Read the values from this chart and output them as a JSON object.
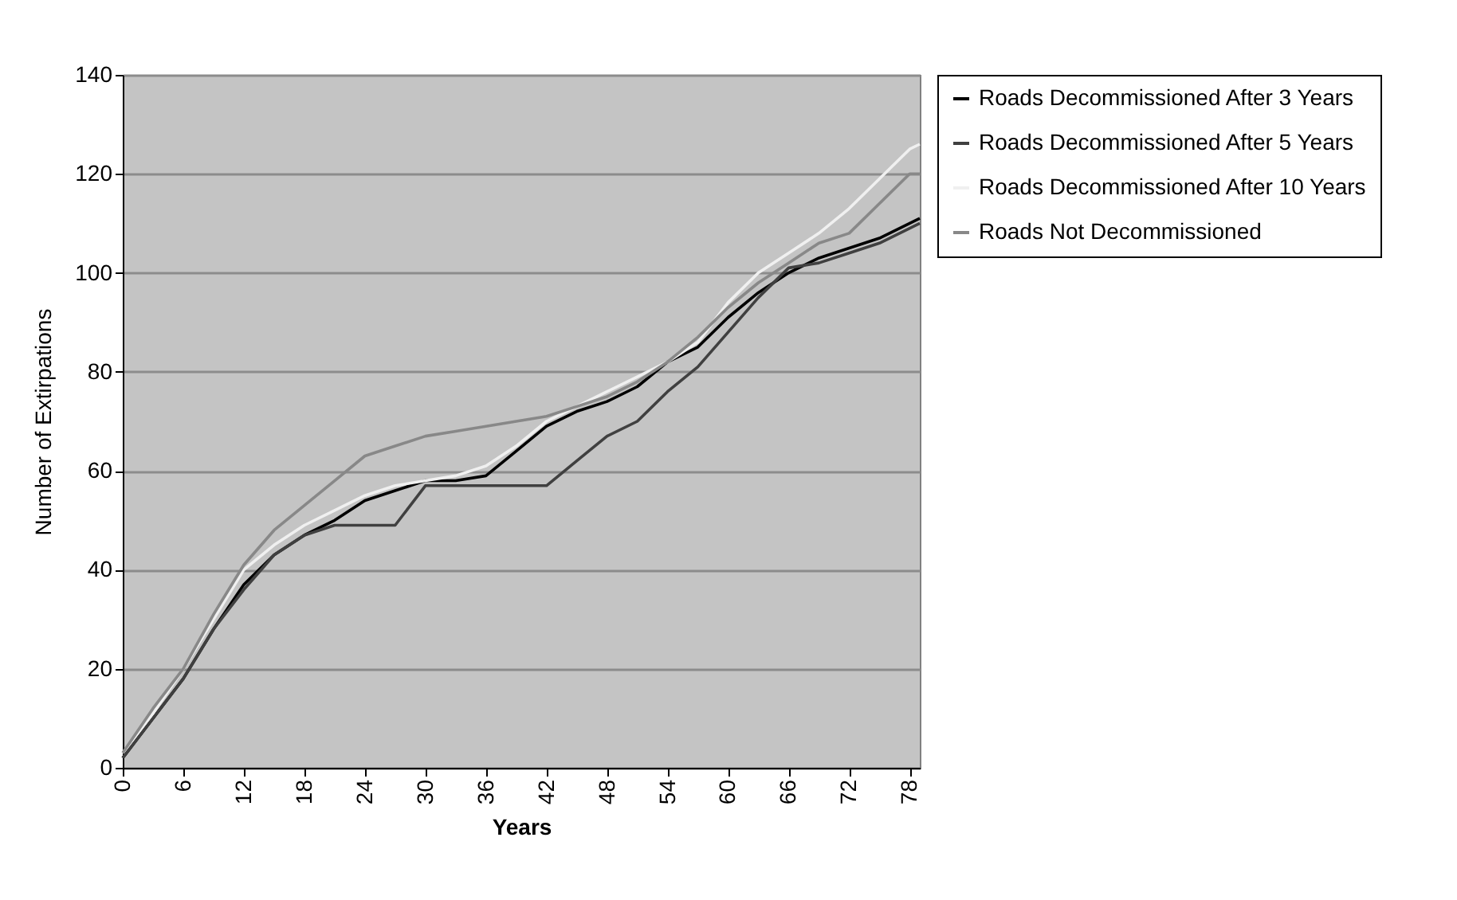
{
  "chart_data": {
    "type": "line",
    "xlabel": "Years",
    "ylabel": "Number of Extirpations",
    "x": [
      0,
      3,
      6,
      9,
      12,
      15,
      18,
      21,
      24,
      27,
      30,
      33,
      36,
      39,
      42,
      45,
      48,
      51,
      54,
      57,
      60,
      63,
      66,
      69,
      72,
      75,
      78,
      79
    ],
    "xlim": [
      0,
      79
    ],
    "xticks": [
      0,
      6,
      12,
      18,
      24,
      30,
      36,
      42,
      48,
      54,
      60,
      66,
      72,
      78
    ],
    "ylim": [
      0,
      140
    ],
    "yticks": [
      0,
      20,
      40,
      60,
      80,
      100,
      120,
      140
    ],
    "grid": "y",
    "legend": "right",
    "series": [
      {
        "name": "Roads Decommissioned After 3 Years",
        "color": "#000000",
        "values": [
          2,
          10,
          18,
          28,
          37,
          43,
          47,
          50,
          54,
          56,
          58,
          58,
          59,
          64,
          69,
          72,
          74,
          77,
          82,
          85,
          91,
          96,
          100,
          103,
          105,
          107,
          110,
          111
        ]
      },
      {
        "name": "Roads Decommissioned After 5 Years",
        "color": "#404040",
        "values": [
          2,
          10,
          18,
          28,
          36,
          43,
          47,
          49,
          49,
          49,
          57,
          57,
          57,
          57,
          57,
          62,
          67,
          70,
          76,
          81,
          88,
          95,
          101,
          102,
          104,
          106,
          109,
          110
        ]
      },
      {
        "name": "Roads Decommissioned After 10 Years",
        "color": "#f0f0f0",
        "values": [
          3,
          11,
          20,
          30,
          40,
          45,
          49,
          52,
          55,
          57,
          58,
          59,
          61,
          65,
          70,
          73,
          76,
          79,
          82,
          86,
          94,
          100,
          104,
          108,
          113,
          119,
          125,
          126
        ]
      },
      {
        "name": "Roads Not Decommissioned",
        "color": "#888888",
        "values": [
          3,
          12,
          20,
          31,
          41,
          48,
          53,
          58,
          63,
          65,
          67,
          68,
          69,
          70,
          71,
          73,
          75,
          78,
          82,
          87,
          93,
          98,
          102,
          106,
          108,
          114,
          120,
          120
        ]
      }
    ]
  }
}
